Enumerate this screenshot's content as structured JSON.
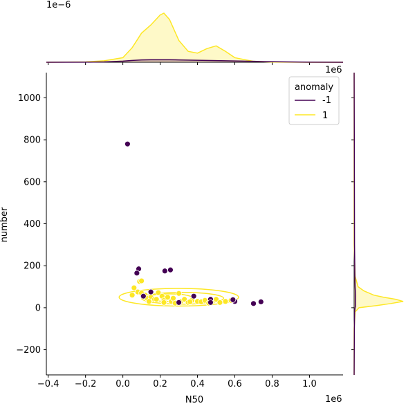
{
  "chart_data": {
    "type": "scatter",
    "title": "",
    "xlabel": "N50",
    "ylabel": "number",
    "x_scale_label": "1e6",
    "y_scale_label": "1e6",
    "top_marginal_scale_label": "1e−6",
    "xlim": [
      -0.41,
      1.18
    ],
    "ylim": [
      -320,
      1120
    ],
    "x_ticks": [
      -0.4,
      -0.2,
      0.0,
      0.2,
      0.4,
      0.6,
      0.8,
      1.0
    ],
    "x_tick_labels": [
      "−0.4",
      "−0.2",
      "0.0",
      "0.2",
      "0.4",
      "0.6",
      "0.8",
      "1.0"
    ],
    "y_ticks": [
      -200,
      0,
      200,
      400,
      600,
      800,
      1000
    ],
    "y_tick_labels": [
      "−200",
      "0",
      "200",
      "400",
      "600",
      "800",
      "1000"
    ],
    "grid": false,
    "legend": {
      "title": "anomaly",
      "placement": "top-right",
      "entries": [
        {
          "label": "-1",
          "color": "#440154"
        },
        {
          "label": "1",
          "color": "#fde725"
        }
      ]
    },
    "series": [
      {
        "name": "-1",
        "color": "#440154",
        "points": [
          [
            0.025,
            780
          ],
          [
            0.085,
            185
          ],
          [
            0.075,
            165
          ],
          [
            0.225,
            175
          ],
          [
            0.255,
            180
          ],
          [
            0.15,
            75
          ],
          [
            0.11,
            55
          ],
          [
            0.3,
            25
          ],
          [
            0.38,
            55
          ],
          [
            0.47,
            40
          ],
          [
            0.6,
            30
          ],
          [
            0.7,
            20
          ],
          [
            0.74,
            28
          ],
          [
            0.47,
            25
          ],
          [
            0.59,
            38
          ]
        ]
      },
      {
        "name": "1",
        "color": "#fde725",
        "points": [
          [
            0.06,
            95
          ],
          [
            0.08,
            75
          ],
          [
            0.1,
            70
          ],
          [
            0.12,
            60
          ],
          [
            0.13,
            45
          ],
          [
            0.15,
            50
          ],
          [
            0.17,
            40
          ],
          [
            0.19,
            72
          ],
          [
            0.21,
            55
          ],
          [
            0.22,
            35
          ],
          [
            0.24,
            50
          ],
          [
            0.26,
            30
          ],
          [
            0.27,
            45
          ],
          [
            0.3,
            68
          ],
          [
            0.31,
            30
          ],
          [
            0.33,
            40
          ],
          [
            0.35,
            25
          ],
          [
            0.37,
            35
          ],
          [
            0.4,
            30
          ],
          [
            0.42,
            28
          ],
          [
            0.44,
            35
          ],
          [
            0.46,
            22
          ],
          [
            0.48,
            30
          ],
          [
            0.5,
            40
          ],
          [
            0.52,
            25
          ],
          [
            0.55,
            30
          ],
          [
            0.58,
            35
          ],
          [
            0.09,
            125
          ],
          [
            0.1,
            128
          ],
          [
            0.18,
            40
          ],
          [
            0.22,
            25
          ],
          [
            0.36,
            28
          ],
          [
            0.05,
            60
          ],
          [
            0.14,
            30
          ],
          [
            0.28,
            22
          ]
        ]
      }
    ],
    "kde_contours": {
      "color": "#fde725",
      "rings": [
        {
          "center": [
            0.3,
            50
          ],
          "rx": 0.32,
          "ry": 42
        },
        {
          "center": [
            0.32,
            45
          ],
          "rx": 0.22,
          "ry": 28
        },
        {
          "center": [
            0.25,
            48
          ],
          "rx": 0.12,
          "ry": 18
        }
      ]
    },
    "marginal_x": {
      "x": [
        -0.41,
        -0.2,
        -0.1,
        0.0,
        0.05,
        0.1,
        0.15,
        0.2,
        0.22,
        0.25,
        0.3,
        0.35,
        0.4,
        0.45,
        0.5,
        0.55,
        0.6,
        0.7,
        0.8,
        1.0,
        1.18
      ],
      "series": [
        {
          "name": "1",
          "color": "#fde725",
          "values": [
            0,
            0.02,
            0.08,
            0.25,
            0.8,
            1.6,
            2.05,
            2.6,
            2.7,
            2.35,
            1.2,
            0.6,
            0.5,
            0.75,
            0.9,
            0.6,
            0.25,
            0.05,
            0.01,
            0,
            0
          ]
        },
        {
          "name": "-1",
          "color": "#440154",
          "values": [
            0,
            0.005,
            0.02,
            0.06,
            0.1,
            0.13,
            0.14,
            0.14,
            0.14,
            0.14,
            0.13,
            0.12,
            0.11,
            0.1,
            0.09,
            0.08,
            0.07,
            0.05,
            0.03,
            0.005,
            0
          ]
        }
      ]
    },
    "marginal_y": {
      "y": [
        -320,
        -100,
        -20,
        0,
        10,
        20,
        30,
        40,
        50,
        60,
        80,
        100,
        150,
        300,
        780,
        1120
      ],
      "series": [
        {
          "name": "1",
          "color": "#fde725",
          "values": [
            0,
            0,
            0.02,
            0.1,
            0.45,
            0.75,
            1.0,
            0.85,
            0.6,
            0.4,
            0.2,
            0.08,
            0.02,
            0,
            0,
            0
          ]
        },
        {
          "name": "-1",
          "color": "#440154",
          "values": [
            0,
            0.005,
            0.01,
            0.02,
            0.03,
            0.03,
            0.03,
            0.03,
            0.03,
            0.03,
            0.025,
            0.02,
            0.015,
            0.008,
            0.004,
            0
          ]
        }
      ]
    }
  }
}
